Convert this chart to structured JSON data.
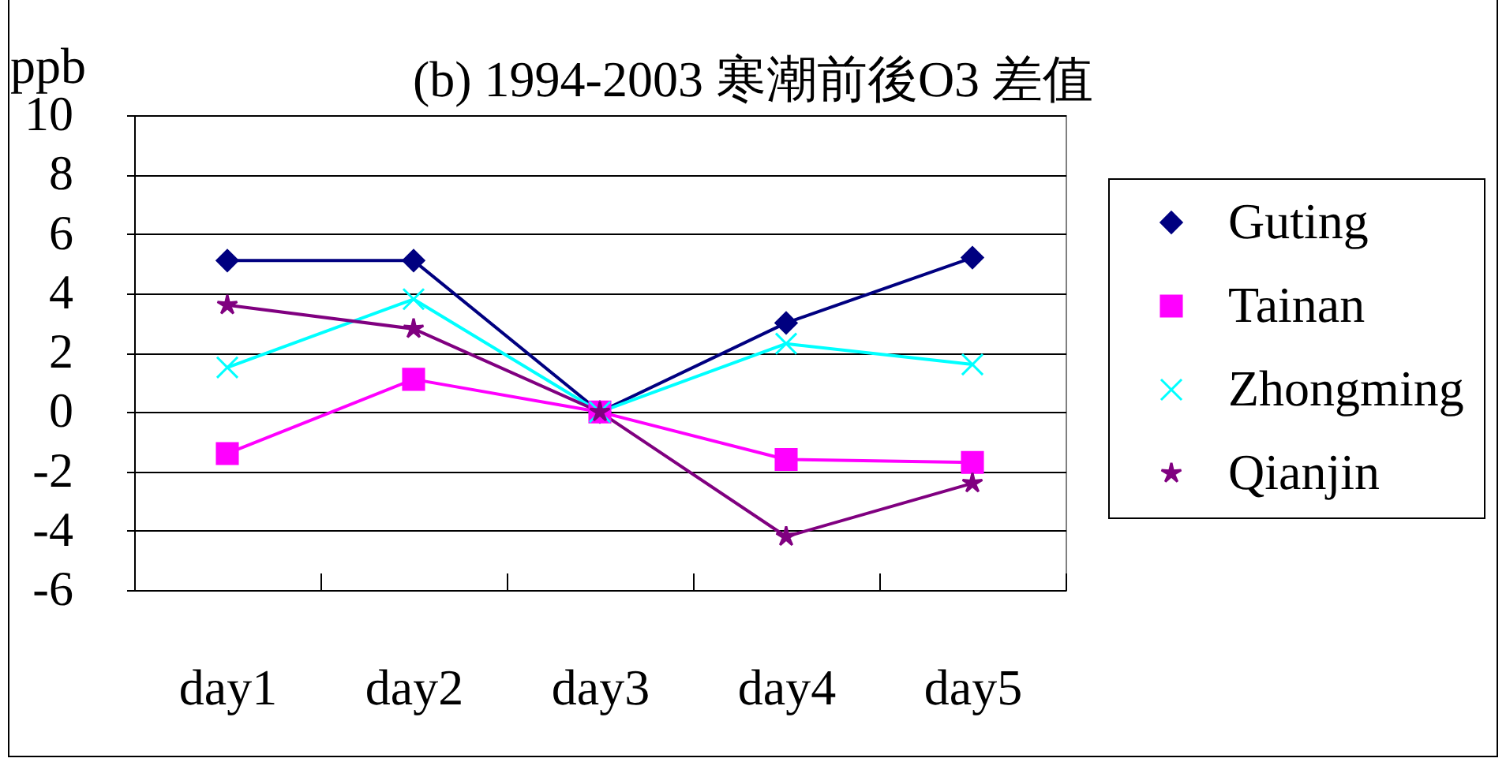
{
  "chart_data": {
    "type": "line",
    "title": "(b) 1994-2003 寒潮前後O3 差值",
    "ylabel": "ppb",
    "categories": [
      "day1",
      "day2",
      "day3",
      "day4",
      "day5"
    ],
    "series": [
      {
        "name": "Guting",
        "color": "#000080",
        "marker": "diamond",
        "values": [
          5.1,
          5.1,
          0,
          3.0,
          5.2
        ]
      },
      {
        "name": "Tainan",
        "color": "#ff00ff",
        "marker": "square",
        "values": [
          -1.4,
          1.1,
          0,
          -1.6,
          -1.7
        ]
      },
      {
        "name": "Zhongming",
        "color": "#00ffff",
        "marker": "cross",
        "values": [
          1.5,
          3.8,
          0,
          2.3,
          1.6
        ]
      },
      {
        "name": "Qianjin",
        "color": "#800080",
        "marker": "star",
        "values": [
          3.6,
          2.8,
          0,
          -4.2,
          -2.4
        ]
      }
    ],
    "ylim": [
      -6,
      10
    ],
    "yticks": [
      -6,
      -4,
      -2,
      0,
      2,
      4,
      6,
      8,
      10
    ],
    "grid": "y",
    "legend": "right"
  }
}
